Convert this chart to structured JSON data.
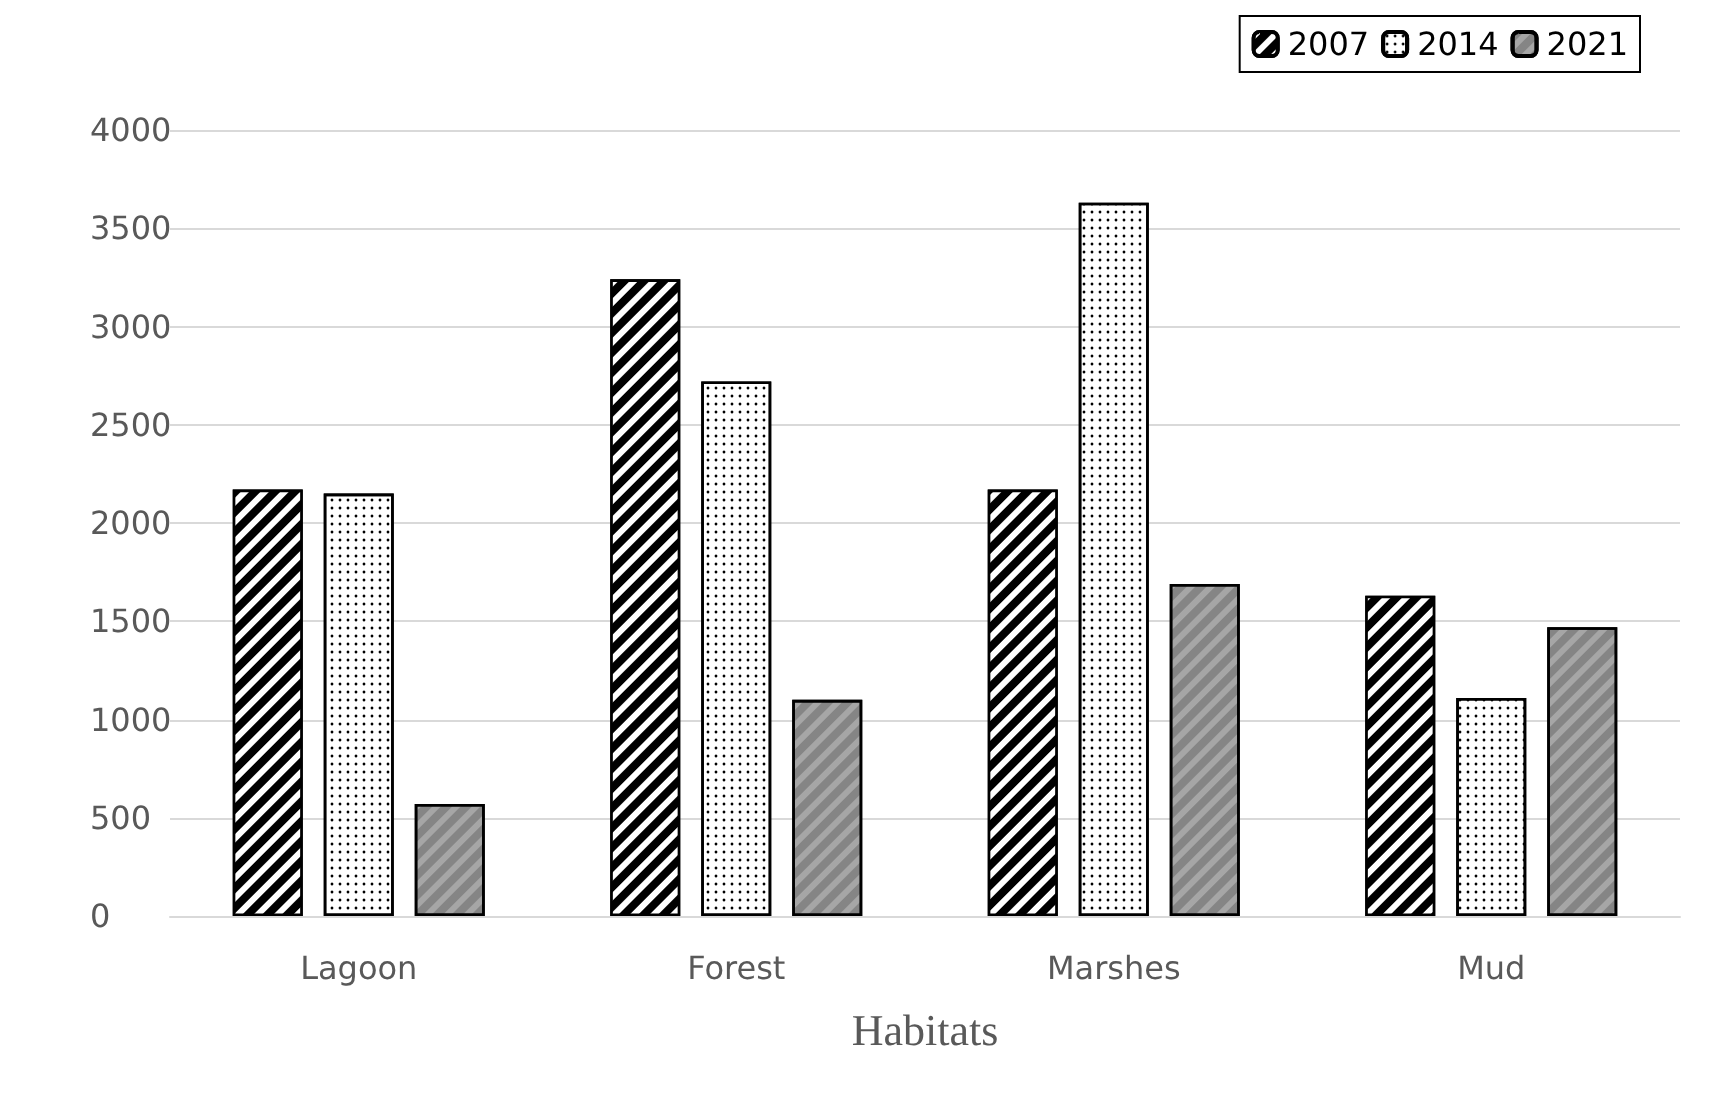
{
  "chart_data": {
    "type": "bar",
    "xlabel": "Habitats",
    "categories": [
      "Lagoon",
      "Forest",
      "Marshes",
      "Mud"
    ],
    "series": [
      {
        "name": "2007",
        "color": "#000000",
        "values": [
          2170,
          3240,
          2170,
          1630
        ]
      },
      {
        "name": "2014",
        "color": "#ffffff",
        "values": [
          2150,
          2720,
          3630,
          1110
        ]
      },
      {
        "name": "2021",
        "color": "#a6a6a6",
        "values": [
          570,
          1100,
          1690,
          1470
        ]
      }
    ],
    "ylim": [
      0,
      4000
    ],
    "yticks": [
      0,
      500,
      1000,
      1500,
      2000,
      2500,
      3000,
      3500,
      4000
    ],
    "grid": "y",
    "legend": "top right"
  }
}
